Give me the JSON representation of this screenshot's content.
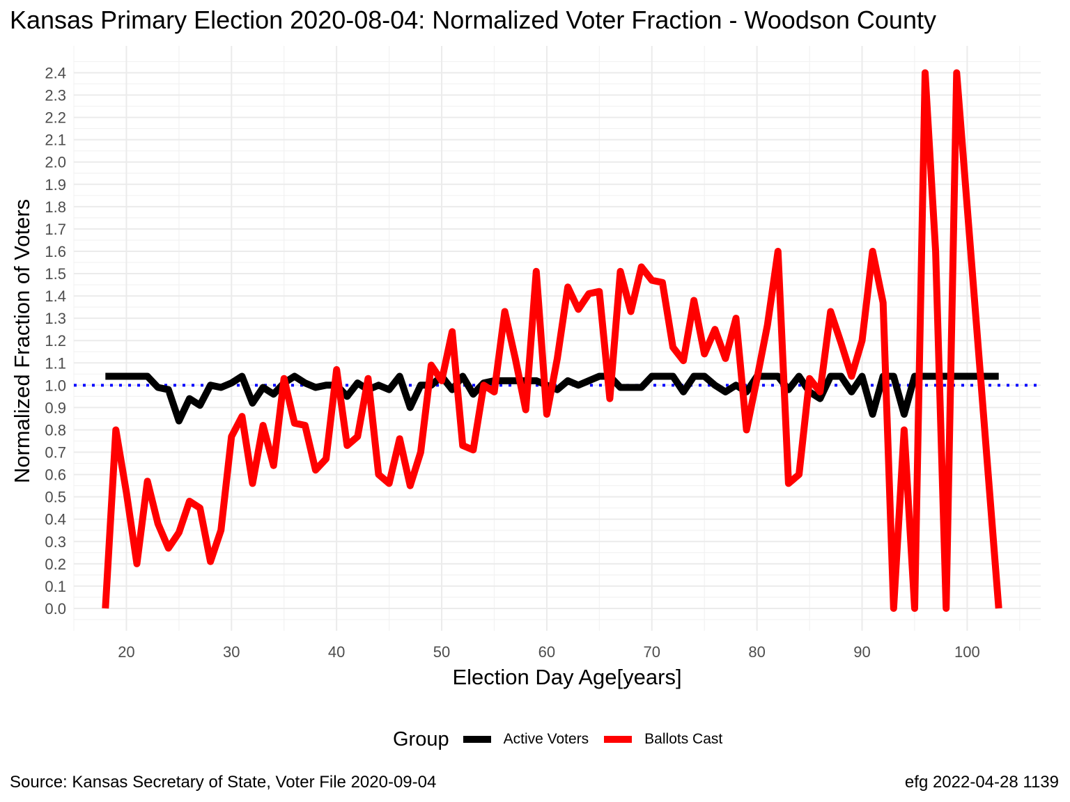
{
  "chart_data": {
    "type": "line",
    "title": "Kansas Primary Election 2020-08-04:  Normalized Voter Fraction - Woodson County",
    "xlabel": "Election Day Age[years]",
    "ylabel": "Normalized Fraction of Voters",
    "xlim": [
      15,
      107
    ],
    "ylim": [
      -0.1,
      2.52
    ],
    "x_ticks": [
      "20",
      "30",
      "40",
      "50",
      "60",
      "70",
      "80",
      "90",
      "100"
    ],
    "y_ticks": [
      "0.0",
      "0.1",
      "0.2",
      "0.3",
      "0.4",
      "0.5",
      "0.6",
      "0.7",
      "0.8",
      "0.9",
      "1.0",
      "1.1",
      "1.2",
      "1.3",
      "1.4",
      "1.5",
      "1.6",
      "1.7",
      "1.8",
      "1.9",
      "2.0",
      "2.1",
      "2.2",
      "2.3",
      "2.4"
    ],
    "reference_line": {
      "y": 1.0,
      "style": "dotted",
      "color": "#0000ff"
    },
    "grid": true,
    "legend": {
      "title": "Group",
      "position": "bottom"
    },
    "x": [
      18,
      19,
      20,
      21,
      22,
      23,
      24,
      25,
      26,
      27,
      28,
      29,
      30,
      31,
      32,
      33,
      34,
      35,
      36,
      37,
      38,
      39,
      40,
      41,
      42,
      43,
      44,
      45,
      46,
      47,
      48,
      49,
      50,
      51,
      52,
      53,
      54,
      55,
      56,
      57,
      58,
      59,
      60,
      61,
      62,
      63,
      64,
      65,
      66,
      67,
      68,
      69,
      70,
      71,
      72,
      73,
      74,
      75,
      76,
      77,
      78,
      79,
      80,
      81,
      82,
      83,
      84,
      85,
      86,
      87,
      88,
      89,
      90,
      91,
      92,
      93,
      94,
      95,
      96,
      97,
      98,
      99,
      100,
      101,
      102,
      103
    ],
    "series": [
      {
        "name": "Active Voters",
        "color": "#000000",
        "values": [
          1.04,
          1.04,
          1.04,
          1.04,
          1.04,
          0.99,
          0.98,
          0.84,
          0.94,
          0.91,
          1.0,
          0.99,
          1.01,
          1.04,
          0.92,
          0.99,
          0.96,
          1.01,
          1.04,
          1.01,
          0.99,
          1.0,
          1.0,
          0.95,
          1.01,
          0.98,
          1.0,
          0.98,
          1.04,
          0.9,
          1.0,
          1.0,
          1.04,
          0.98,
          1.04,
          0.96,
          1.01,
          1.02,
          1.02,
          1.02,
          1.02,
          1.02,
          1.0,
          0.98,
          1.02,
          1.0,
          1.02,
          1.04,
          1.04,
          0.99,
          0.99,
          0.99,
          1.04,
          1.04,
          1.04,
          0.97,
          1.04,
          1.04,
          1.0,
          0.97,
          1.0,
          0.97,
          1.04,
          1.04,
          1.04,
          0.98,
          1.04,
          0.97,
          0.94,
          1.04,
          1.04,
          0.97,
          1.04,
          0.87,
          1.04,
          1.04,
          0.87,
          1.04,
          1.04,
          1.04,
          1.04,
          1.04,
          1.04,
          1.04,
          1.04,
          1.04
        ]
      },
      {
        "name": "Ballots Cast",
        "color": "#ff0000",
        "values": [
          0.0,
          0.8,
          0.52,
          0.2,
          0.57,
          0.38,
          0.27,
          0.34,
          0.48,
          0.45,
          0.21,
          0.35,
          0.77,
          0.86,
          0.56,
          0.82,
          0.64,
          1.03,
          0.83,
          0.82,
          0.62,
          0.67,
          1.07,
          0.73,
          0.77,
          1.03,
          0.6,
          0.56,
          0.76,
          0.55,
          0.7,
          1.09,
          1.02,
          1.24,
          0.73,
          0.71,
          1.0,
          0.97,
          1.33,
          1.12,
          0.89,
          1.51,
          0.87,
          1.12,
          1.44,
          1.34,
          1.41,
          1.42,
          0.94,
          1.51,
          1.33,
          1.53,
          1.47,
          1.46,
          1.17,
          1.11,
          1.38,
          1.14,
          1.25,
          1.12,
          1.3,
          0.8,
          1.03,
          1.27,
          1.6,
          0.56,
          0.6,
          1.03,
          0.97,
          1.33,
          1.19,
          1.04,
          1.2,
          1.6,
          1.37,
          0.0,
          0.8,
          0.0,
          2.4,
          1.6,
          0.0,
          2.4,
          1.8,
          1.2,
          0.6,
          0.0
        ]
      }
    ]
  },
  "caption": {
    "source": "Source:  Kansas Secretary of State, Voter File  2020-09-04",
    "credit": "efg 2022-04-28 1139"
  }
}
